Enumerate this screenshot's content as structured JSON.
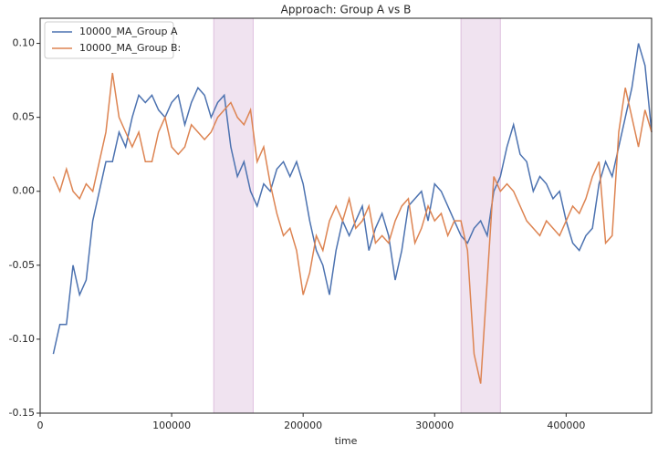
{
  "chart_data": {
    "type": "line",
    "title": "Approach: Group A vs B",
    "xlabel": "time",
    "x": [
      10000,
      15000,
      20000,
      25000,
      30000,
      35000,
      40000,
      45000,
      50000,
      55000,
      60000,
      65000,
      70000,
      75000,
      80000,
      85000,
      90000,
      95000,
      100000,
      105000,
      110000,
      115000,
      120000,
      125000,
      130000,
      135000,
      140000,
      145000,
      150000,
      155000,
      160000,
      165000,
      170000,
      175000,
      180000,
      185000,
      190000,
      195000,
      200000,
      205000,
      210000,
      215000,
      220000,
      225000,
      230000,
      235000,
      240000,
      245000,
      250000,
      255000,
      260000,
      265000,
      270000,
      275000,
      280000,
      285000,
      290000,
      295000,
      300000,
      305000,
      310000,
      315000,
      320000,
      325000,
      330000,
      335000,
      340000,
      345000,
      350000,
      355000,
      360000,
      365000,
      370000,
      375000,
      380000,
      385000,
      390000,
      395000,
      400000,
      405000,
      410000,
      415000,
      420000,
      425000,
      430000,
      435000,
      440000,
      445000,
      450000,
      455000,
      460000,
      465000
    ],
    "series": [
      {
        "name": "10000_MA_Group A",
        "color": "#4c72b0",
        "values": [
          -0.11,
          -0.09,
          -0.09,
          -0.05,
          -0.07,
          -0.06,
          -0.02,
          0.0,
          0.02,
          0.02,
          0.04,
          0.03,
          0.05,
          0.065,
          0.06,
          0.065,
          0.055,
          0.05,
          0.06,
          0.065,
          0.045,
          0.06,
          0.07,
          0.065,
          0.05,
          0.06,
          0.065,
          0.03,
          0.01,
          0.02,
          0.0,
          -0.01,
          0.005,
          0.0,
          0.015,
          0.02,
          0.01,
          0.02,
          0.005,
          -0.02,
          -0.04,
          -0.05,
          -0.07,
          -0.04,
          -0.02,
          -0.03,
          -0.02,
          -0.01,
          -0.04,
          -0.025,
          -0.015,
          -0.03,
          -0.06,
          -0.04,
          -0.01,
          -0.005,
          0.0,
          -0.02,
          0.005,
          0.0,
          -0.01,
          -0.02,
          -0.03,
          -0.035,
          -0.025,
          -0.02,
          -0.03,
          0.0,
          0.01,
          0.03,
          0.045,
          0.025,
          0.02,
          0.0,
          0.01,
          0.005,
          -0.005,
          0.0,
          -0.02,
          -0.035,
          -0.04,
          -0.03,
          -0.025,
          0.005,
          0.02,
          0.01,
          0.03,
          0.05,
          0.07,
          0.1,
          0.085,
          0.04
        ]
      },
      {
        "name": "10000_MA_Group B:",
        "color": "#dd8452",
        "values": [
          0.01,
          0.0,
          0.015,
          0.0,
          -0.005,
          0.005,
          0.0,
          0.02,
          0.04,
          0.08,
          0.05,
          0.04,
          0.03,
          0.04,
          0.02,
          0.02,
          0.04,
          0.05,
          0.03,
          0.025,
          0.03,
          0.045,
          0.04,
          0.035,
          0.04,
          0.05,
          0.055,
          0.06,
          0.05,
          0.045,
          0.055,
          0.02,
          0.03,
          0.005,
          -0.015,
          -0.03,
          -0.025,
          -0.04,
          -0.07,
          -0.055,
          -0.03,
          -0.04,
          -0.02,
          -0.01,
          -0.02,
          -0.005,
          -0.025,
          -0.02,
          -0.01,
          -0.035,
          -0.03,
          -0.035,
          -0.02,
          -0.01,
          -0.005,
          -0.035,
          -0.025,
          -0.01,
          -0.02,
          -0.015,
          -0.03,
          -0.02,
          -0.02,
          -0.04,
          -0.11,
          -0.13,
          -0.06,
          0.01,
          0.0,
          0.005,
          0.0,
          -0.01,
          -0.02,
          -0.025,
          -0.03,
          -0.02,
          -0.025,
          -0.03,
          -0.02,
          -0.01,
          -0.015,
          -0.005,
          0.01,
          0.02,
          -0.035,
          -0.03,
          0.04,
          0.07,
          0.05,
          0.03,
          0.055,
          0.04
        ]
      }
    ],
    "xlim": [
      0,
      465000
    ],
    "xticks": [
      0,
      100000,
      200000,
      300000,
      400000
    ],
    "ylim": [
      -0.15,
      0.117
    ],
    "yticks": [
      -0.15,
      {
        "value": -0.1,
        "label": "-0.10"
      },
      -0.05,
      {
        "value": 0,
        "label": "0.00"
      },
      0.05,
      {
        "value": 0.1,
        "label": "0.10"
      }
    ],
    "shaded_regions": [
      [
        132000,
        162000
      ],
      [
        320000,
        350000
      ]
    ],
    "shade_color": "#c58fc5",
    "legend": "upper left",
    "grid": false
  }
}
